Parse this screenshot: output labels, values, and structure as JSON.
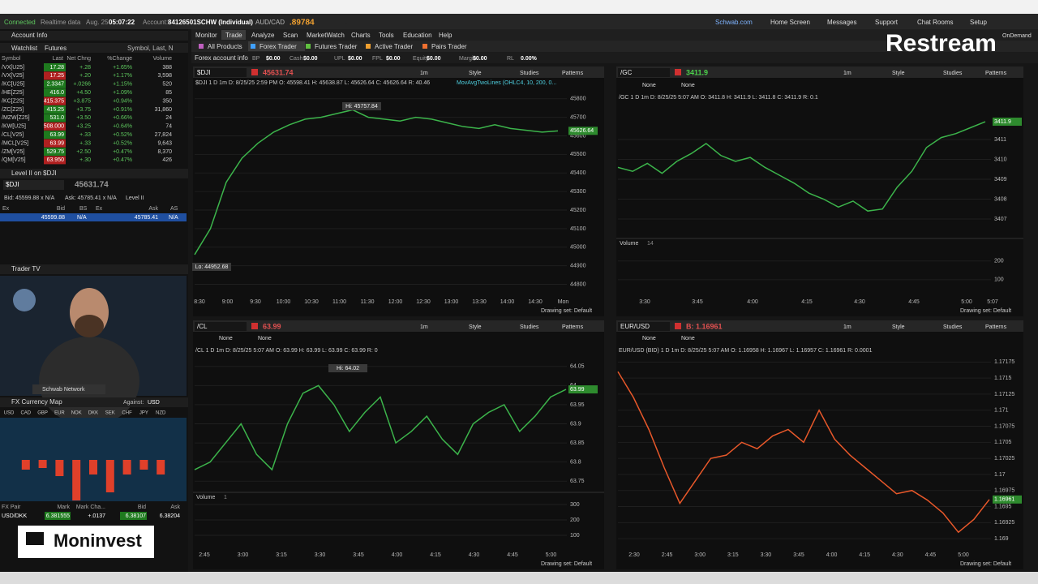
{
  "status_bar": {
    "connected": "Connected",
    "realtime": "Realtime data",
    "date": "Aug. 25",
    "time": "05:07:22",
    "account_label": "Account:",
    "account": "84126501SCHW (Individual)",
    "pair": "AUD/CAD",
    "pair_price": ".89784",
    "links": [
      "Schwab.com",
      "Home Screen",
      "Messages",
      "Support",
      "Chat Rooms",
      "Setup"
    ],
    "ondemand": "OnDemand"
  },
  "overlays": {
    "restream": "Restream",
    "moninvest": "Moninvest"
  },
  "menu": [
    "Monitor",
    "Trade",
    "Analyze",
    "Scan",
    "MarketWatch",
    "Charts",
    "Tools",
    "Education",
    "Help"
  ],
  "submenu": [
    "All Products",
    "Forex Trader",
    "Futures Trader",
    "Active Trader",
    "Pairs Trader"
  ],
  "forex_info": {
    "title": "Forex account info",
    "fields": [
      [
        "BP",
        "$0.00"
      ],
      [
        "Cash",
        "$0.00"
      ],
      [
        "UPL",
        "$0.00"
      ],
      [
        "FPL",
        "$0.00"
      ],
      [
        "Equity",
        "$0.00"
      ],
      [
        "Margin",
        "$0.00"
      ],
      [
        "RL",
        "0.00%"
      ]
    ]
  },
  "left": {
    "account_info": "Account Info",
    "watchlist": {
      "title": "Watchlist",
      "list": "Futures",
      "search": "Symbol, Last, N",
      "columns": [
        "Symbol",
        "Last",
        "Net Chng",
        "%Change",
        "Volume"
      ],
      "rows": [
        [
          "/VX[U25]",
          "17.28",
          "+.28",
          "+1.65%",
          "388"
        ],
        [
          "/VX[V25]",
          "17.25",
          "+.20",
          "+1.17%",
          "3,598"
        ],
        [
          "/KC[U25]",
          "2.3347",
          "+.0266",
          "+1.15%",
          "520"
        ],
        [
          "/HE[Z25]",
          "416.0",
          "+4.50",
          "+1.09%",
          "85"
        ],
        [
          "/KC[Z25]",
          "415.375",
          "+3.875",
          "+0.94%",
          "350"
        ],
        [
          "/ZC[Z25]",
          "415.25",
          "+3.75",
          "+0.91%",
          "31,860"
        ],
        [
          "/MZW[Z25]",
          "531.0",
          "+3.50",
          "+0.66%",
          "24"
        ],
        [
          "/KW[U25]",
          "508.000",
          "+3.25",
          "+0.64%",
          "74"
        ],
        [
          "/CL[V25]",
          "63.99",
          "+.33",
          "+0.52%",
          "27,824"
        ],
        [
          "/MCL[V25]",
          "63.99",
          "+.33",
          "+0.52%",
          "9,643"
        ],
        [
          "/ZM[V25]",
          "529.75",
          "+2.50",
          "+0.47%",
          "8,370"
        ],
        [
          "/QM[V25]",
          "63.950",
          "+.30",
          "+0.47%",
          "426"
        ]
      ],
      "last_colors": [
        "#1e7a1e",
        "#b02020",
        "#1e7a1e",
        "#1e7a1e",
        "#b02020",
        "#1e7a1e",
        "#1e7a1e",
        "#b02020",
        "#1e7a1e",
        "#b02020",
        "#1e7a1e",
        "#b02020"
      ]
    },
    "level2": {
      "title": "Level II on $DJI",
      "symbol": "$DJI",
      "price": "45631.74",
      "bid": "Bid: 45599.88 x N/A",
      "ask": "Ask: 45785.41 x N/A",
      "label": "Level II",
      "columns": [
        "Ex",
        "Bid",
        "BS",
        "Ex",
        "Ask",
        "AS"
      ],
      "row": [
        "45599.88",
        "N/A",
        "45785.41",
        "N/A"
      ]
    },
    "trader_tv": {
      "title": "Trader TV",
      "caption": "Schwab Network"
    },
    "fx_map": {
      "title": "FX Currency Map",
      "against_label": "Against:",
      "against": "USD",
      "currencies": [
        "USD",
        "CAD",
        "GBP",
        "EUR",
        "NOK",
        "DKK",
        "SEK",
        "CHF",
        "JPY",
        "NZD"
      ],
      "changes": [
        null,
        -0.06,
        -0.05,
        -0.1,
        -0.25,
        -0.09,
        -0.2,
        -0.09,
        -0.06,
        -0.09
      ],
      "bar_color": "#e0402a"
    },
    "fx_table": {
      "columns": [
        "FX Pair",
        "Mark",
        "Mark Cha...",
        "Bid",
        "Ask"
      ],
      "rows": [
        [
          "USD/DKK",
          "6.381555",
          "+.0137",
          "6.38107",
          "6.38204"
        ]
      ]
    }
  },
  "chart_toolbar": {
    "interval": "1m",
    "style": "Style",
    "studies": "Studies",
    "patterns": "Patterns",
    "drawing_set": "Drawing set: Default",
    "none": "None"
  },
  "charts": [
    {
      "symbol": "$DJI",
      "price": "45631.74",
      "price_color": "#e05050",
      "info": "$DJI 1 D 1m   D: 8/25/25 2:59 PM   O: 45598.41   H: 45638.87   L: 45626.64   C: 45626.64   R: 40.46",
      "study": "MovAvgTwoLines (OHLC4, 10, 200, 0...",
      "annotations": [
        "Hi: 45757.84",
        "Lo: 44952.68"
      ],
      "last_label": "45626.64",
      "ylim": [
        44750,
        45860
      ],
      "yticks": [
        44800,
        44900,
        45000,
        45100,
        45200,
        45300,
        45400,
        45500,
        45600,
        45700,
        45800
      ],
      "xlabels": [
        "8:30",
        "9:00",
        "9:30",
        "10:00",
        "10:30",
        "11:00",
        "11:30",
        "12:00",
        "12:30",
        "13:00",
        "13:30",
        "14:00",
        "14:30",
        "Mon"
      ],
      "values": [
        44960,
        45100,
        45350,
        45480,
        45560,
        45620,
        45660,
        45690,
        45700,
        45720,
        45740,
        45700,
        45690,
        45680,
        45700,
        45690,
        45670,
        45650,
        45640,
        45660,
        45640,
        45630,
        45620,
        45627
      ],
      "color": "#3cb44b"
    },
    {
      "symbol": "/GC",
      "price": "3411.9",
      "price_color": "#4cd04c",
      "info": "/GC 1 D 1m   D: 8/25/25 5:07 AM   O: 3411.8   H: 3411.9   L: 3411.8   C: 3411.9   R: 0.1",
      "last_label": "3411.9",
      "ylim": [
        3406.1,
        3412.8
      ],
      "yticks": [
        3407,
        3408,
        3409,
        3410,
        3411
      ],
      "xlabels": [
        "3:30",
        "3:45",
        "4:00",
        "4:15",
        "4:30",
        "4:45",
        "5:00",
        "5:07"
      ],
      "values": [
        3409.6,
        3409.4,
        3409.8,
        3409.3,
        3409.9,
        3410.3,
        3410.8,
        3410.2,
        3409.9,
        3410.1,
        3409.6,
        3409.2,
        3408.8,
        3408.3,
        3408.0,
        3407.6,
        3407.9,
        3407.4,
        3407.5,
        3408.6,
        3409.4,
        3410.6,
        3411.1,
        3411.3,
        3411.6,
        3411.9
      ],
      "color": "#3cb44b",
      "volume": "Volume",
      "volume_count": "14",
      "volume_ylim": [
        0,
        320
      ],
      "volume_ticks": [
        200,
        100
      ]
    },
    {
      "symbol": "/CL",
      "price": "63.99",
      "price_color": "#e05050",
      "info": "/CL 1 D 1m   D: 8/25/25 5:07 AM   O: 63.99   H: 63.99   L: 63.99   C: 63.99   R: 0",
      "annotations": [
        "Hi: 64.02"
      ],
      "last_label": "63.99",
      "ylim": [
        63.725,
        64.075
      ],
      "yticks": [
        63.75,
        63.8,
        63.85,
        63.9,
        63.95,
        64,
        64.05
      ],
      "xlabels": [
        "2:45",
        "3:00",
        "3:15",
        "3:30",
        "3:45",
        "4:00",
        "4:15",
        "4:30",
        "4:45",
        "5:00"
      ],
      "values": [
        63.78,
        63.8,
        63.85,
        63.9,
        63.82,
        63.78,
        63.9,
        63.98,
        64.0,
        63.95,
        63.88,
        63.93,
        63.97,
        63.85,
        63.88,
        63.92,
        63.86,
        63.82,
        63.9,
        63.93,
        63.95,
        63.88,
        63.92,
        63.97,
        63.99
      ],
      "color": "#3cb44b",
      "volume": "Volume",
      "volume_count": "1",
      "volume_ylim": [
        0,
        379
      ],
      "volume_ticks": [
        300,
        200,
        100
      ]
    },
    {
      "symbol": "EUR/USD",
      "price": "B: 1.16961",
      "price_color": "#e05050",
      "info": "EUR/USD (BID) 1 D 1m   D: 8/25/25 5:07 AM   O: 1.16958   H: 1.16967   L: 1.16957   C: 1.16961   R: 0.0001",
      "last_label": "1.16961",
      "ylim": [
        1.16885,
        1.17183
      ],
      "yticks": [
        1.169,
        1.16925,
        1.1695,
        1.16975,
        1.17,
        1.17025,
        1.1705,
        1.17075,
        1.171,
        1.17125,
        1.1715,
        1.17175
      ],
      "xlabels": [
        "2:30",
        "2:45",
        "3:00",
        "3:15",
        "3:30",
        "3:45",
        "4:00",
        "4:15",
        "4:30",
        "4:45",
        "5:00"
      ],
      "values": [
        1.1716,
        1.1712,
        1.1707,
        1.1701,
        1.16955,
        1.1699,
        1.17025,
        1.1703,
        1.1705,
        1.1704,
        1.1706,
        1.1707,
        1.1705,
        1.171,
        1.17055,
        1.1703,
        1.1701,
        1.1699,
        1.1697,
        1.16975,
        1.1696,
        1.1694,
        1.1691,
        1.1693,
        1.16961
      ],
      "color": "#e8582a"
    }
  ]
}
